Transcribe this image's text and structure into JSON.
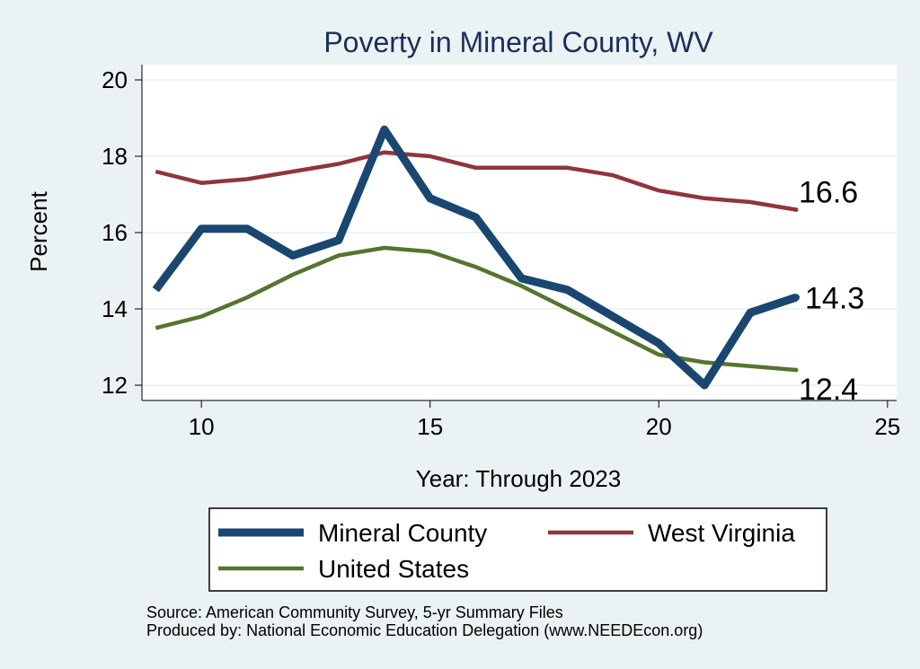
{
  "chart_data": {
    "type": "line",
    "title": "Poverty in Mineral County, WV",
    "xlabel": "Year: Through 2023",
    "ylabel": "Percent",
    "xlim": [
      8.7,
      25.2
    ],
    "ylim": [
      11.6,
      20.4
    ],
    "xticks": [
      10,
      15,
      20,
      25
    ],
    "yticks": [
      12,
      14,
      16,
      18,
      20
    ],
    "grid": true,
    "x": [
      9,
      10,
      11,
      12,
      13,
      14,
      15,
      16,
      17,
      18,
      19,
      20,
      21,
      22,
      23
    ],
    "series": [
      {
        "name": "Mineral County",
        "color": "#1a476f",
        "values": [
          14.5,
          16.1,
          16.1,
          15.4,
          15.8,
          18.7,
          16.9,
          16.4,
          14.8,
          14.5,
          13.8,
          13.1,
          12.0,
          13.9,
          14.3
        ],
        "end_label": "14.3"
      },
      {
        "name": "West Virginia",
        "color": "#90353b",
        "values": [
          17.6,
          17.3,
          17.4,
          17.6,
          17.8,
          18.1,
          18.0,
          17.7,
          17.7,
          17.7,
          17.5,
          17.1,
          16.9,
          16.8,
          16.6
        ],
        "end_label": "16.6"
      },
      {
        "name": "United States",
        "color": "#55752f",
        "values": [
          13.5,
          13.8,
          14.3,
          14.9,
          15.4,
          15.6,
          15.5,
          15.1,
          14.6,
          14.0,
          13.4,
          12.8,
          12.6,
          12.5,
          12.4
        ],
        "end_label": "12.4"
      }
    ],
    "legend_position": "bottom"
  },
  "footer": {
    "source": "Source: American Community Survey, 5-yr Summary Files",
    "produced": "Produced by: National Economic Education Delegation (www.NEEDEcon.org)"
  }
}
